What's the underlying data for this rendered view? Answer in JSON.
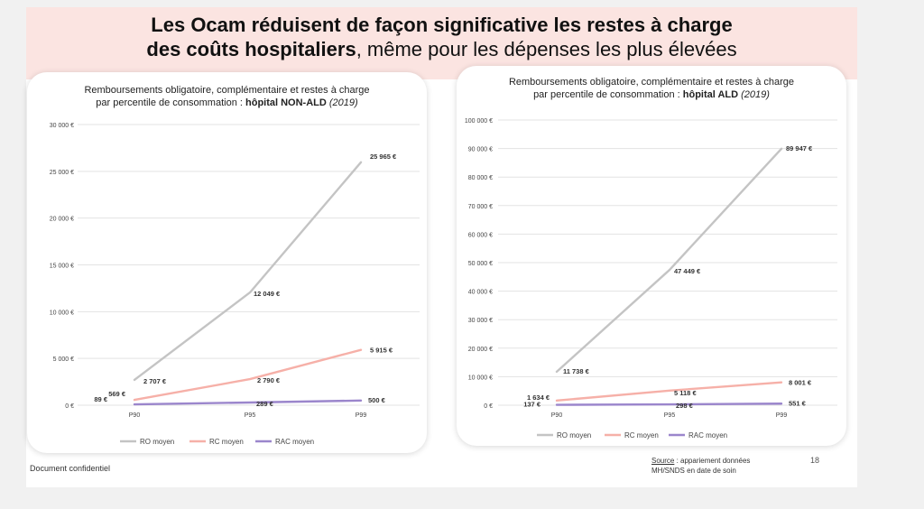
{
  "slide": {
    "title_line1": "Les Ocam réduisent de façon significative les restes à charge",
    "title_line2_bold": "des coûts hospitaliers",
    "title_line2_rest": ", même pour les dépenses les plus élevées",
    "footer": "Document confidentiel",
    "source_label": "Source",
    "source_text1": " : appariement données",
    "source_text2": "MH/SNDS en date de soin",
    "page_number": "18"
  },
  "colors": {
    "ro": "#c4c4c4",
    "rc": "#f6b0a8",
    "rac": "#9b86cc",
    "grid": "#e3e3e3",
    "band": "#fbe4e1"
  },
  "chart_data": [
    {
      "type": "line",
      "title_line1": "Remboursements obligatoire, complémentaire et restes à charge",
      "title_line2_pre": "par percentile de consommation : ",
      "title_line2_bold": "hôpital NON-ALD",
      "title_line2_italic": " (2019)",
      "categories": [
        "P90",
        "P95",
        "P99"
      ],
      "ylim": [
        0,
        30000
      ],
      "yticks": [
        0,
        5000,
        10000,
        15000,
        20000,
        25000,
        30000
      ],
      "ytick_labels": [
        "0 €",
        "5 000 €",
        "10 000 €",
        "15 000 €",
        "20 000 €",
        "25 000 €",
        "30 000 €"
      ],
      "series": [
        {
          "name": "RO moyen",
          "key": "ro",
          "values": [
            2707,
            12049,
            25965
          ],
          "labels": [
            "2 707 €",
            "12 049 €",
            "25 965 €"
          ]
        },
        {
          "name": "RC moyen",
          "key": "rc",
          "values": [
            569,
            2790,
            5915
          ],
          "labels": [
            "569 €",
            "2 790 €",
            "5 915 €"
          ]
        },
        {
          "name": "RAC moyen",
          "key": "rac",
          "values": [
            89,
            289,
            500
          ],
          "labels": [
            "89 €",
            "289 €",
            "500 €"
          ]
        }
      ],
      "legend": "bottom",
      "grid": true
    },
    {
      "type": "line",
      "title_line1": "Remboursements obligatoire, complémentaire et restes à charge",
      "title_line2_pre": "par percentile de consommation : ",
      "title_line2_bold": "hôpital ALD",
      "title_line2_italic": " (2019)",
      "categories": [
        "P90",
        "P95",
        "P99"
      ],
      "ylim": [
        0,
        100000
      ],
      "yticks": [
        0,
        10000,
        20000,
        30000,
        40000,
        50000,
        60000,
        70000,
        80000,
        90000,
        100000
      ],
      "ytick_labels": [
        "0 €",
        "10 000 €",
        "20 000 €",
        "30 000 €",
        "40 000 €",
        "50 000 €",
        "60 000 €",
        "70 000 €",
        "80 000 €",
        "90 000 €",
        "100 000 €"
      ],
      "series": [
        {
          "name": "RO moyen",
          "key": "ro",
          "values": [
            11738,
            47449,
            89947
          ],
          "labels": [
            "11 738 €",
            "47 449 €",
            "89 947 €"
          ]
        },
        {
          "name": "RC moyen",
          "key": "rc",
          "values": [
            1634,
            5118,
            8001
          ],
          "labels": [
            "1 634 €",
            "5 118 €",
            "8 001 €"
          ]
        },
        {
          "name": "RAC moyen",
          "key": "rac",
          "values": [
            137,
            298,
            551
          ],
          "labels": [
            "137 €",
            "298 €",
            "551 €"
          ]
        }
      ],
      "legend": "bottom",
      "grid": true
    }
  ]
}
